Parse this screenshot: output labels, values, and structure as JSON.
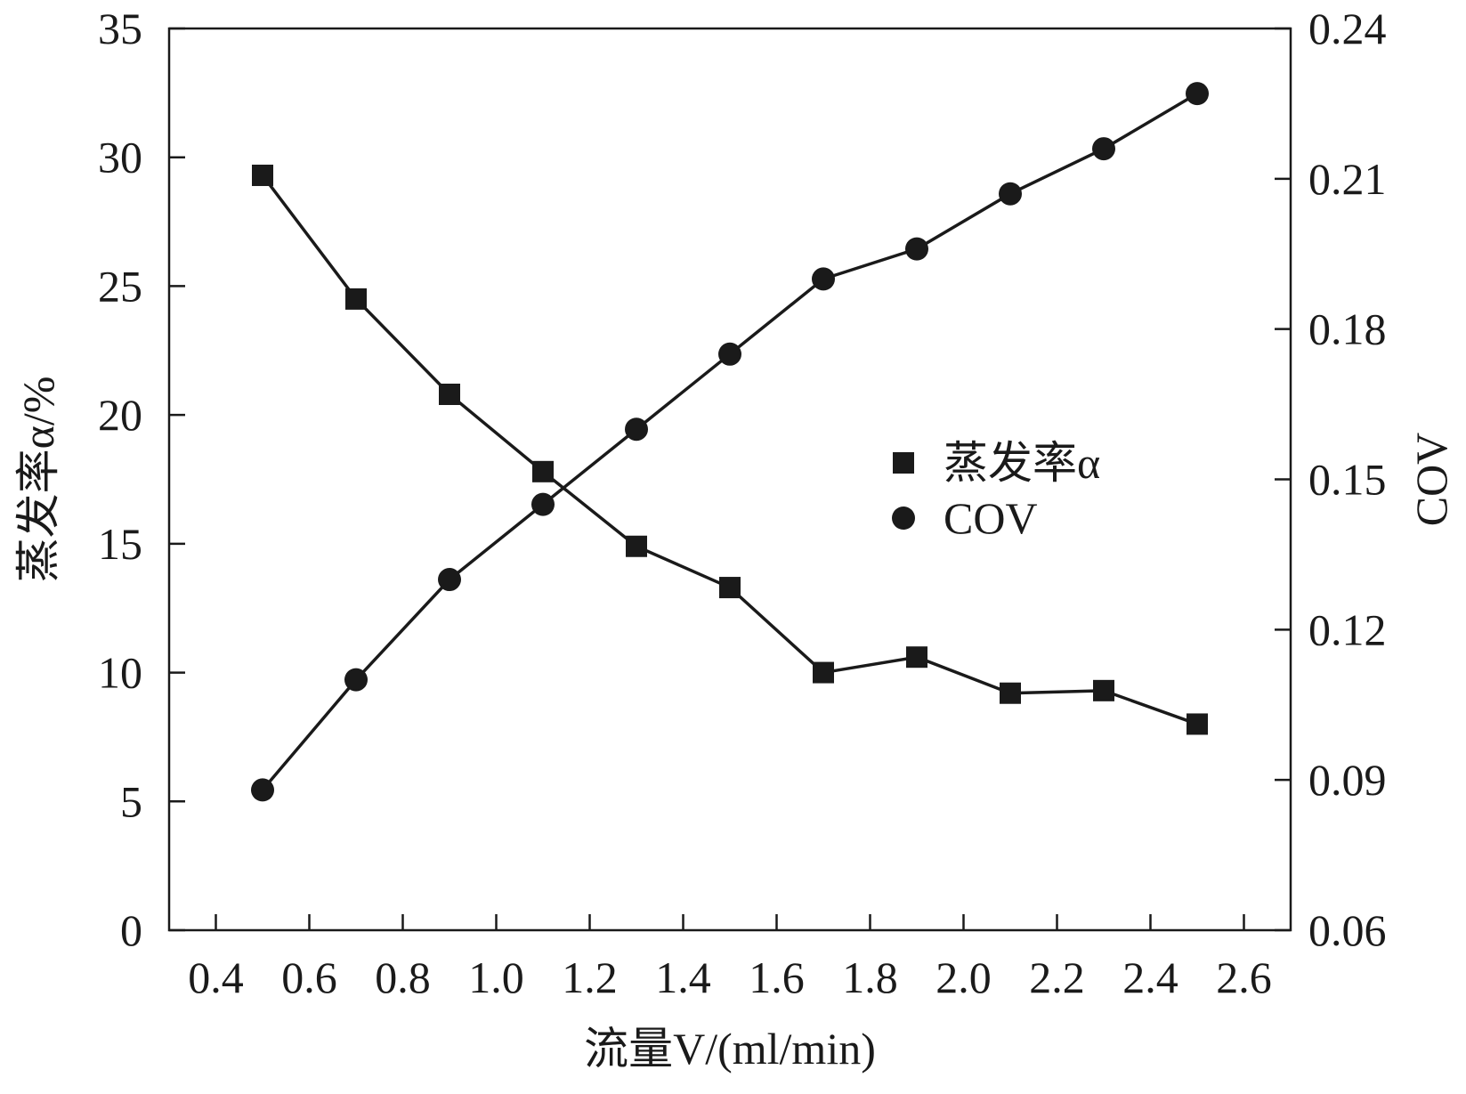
{
  "chart_data": {
    "type": "line",
    "xlabel": "流量V/(ml/min)",
    "ylabel_left": "蒸发率α/%",
    "ylabel_right": "COV",
    "xlim": [
      0.3,
      2.7
    ],
    "ylim_left": [
      0,
      35
    ],
    "ylim_right": [
      0.06,
      0.24
    ],
    "x_ticks": [
      "0.4",
      "0.6",
      "0.8",
      "1.0",
      "1.2",
      "1.4",
      "1.6",
      "1.8",
      "2.0",
      "2.2",
      "2.4",
      "2.6"
    ],
    "y_left_ticks": [
      "0",
      "5",
      "10",
      "15",
      "20",
      "25",
      "30",
      "35"
    ],
    "y_right_ticks": [
      "0.06",
      "0.09",
      "0.12",
      "0.15",
      "0.18",
      "0.21",
      "0.24"
    ],
    "legend_position": "center-right",
    "series": [
      {
        "name": "蒸发率α",
        "axis": "left",
        "marker": "square",
        "x": [
          0.5,
          0.7,
          0.9,
          1.1,
          1.3,
          1.5,
          1.7,
          1.9,
          2.1,
          2.3,
          2.5
        ],
        "y": [
          29.3,
          24.5,
          20.8,
          17.8,
          14.9,
          13.3,
          10.0,
          10.6,
          9.2,
          9.3,
          8.0
        ]
      },
      {
        "name": "COV",
        "axis": "right",
        "marker": "circle",
        "x": [
          0.5,
          0.7,
          0.9,
          1.1,
          1.3,
          1.5,
          1.7,
          1.9,
          2.1,
          2.3,
          2.5
        ],
        "y": [
          0.088,
          0.11,
          0.13,
          0.145,
          0.16,
          0.175,
          0.19,
          0.196,
          0.207,
          0.216,
          0.227
        ]
      }
    ],
    "colors": {
      "ink": "#1a1a1a",
      "background": "#ffffff"
    }
  }
}
